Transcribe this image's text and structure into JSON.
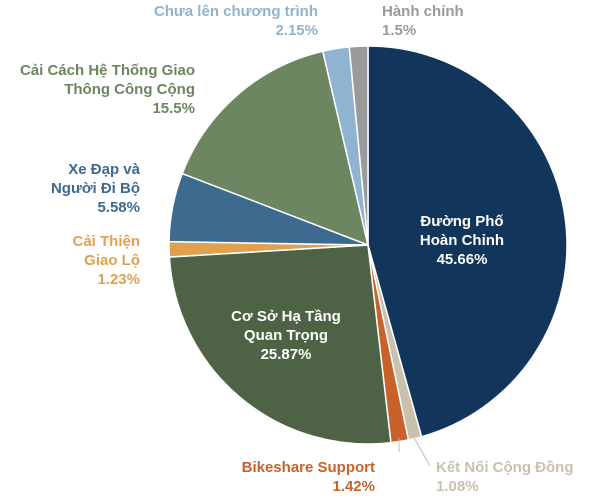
{
  "chart_data": {
    "type": "pie",
    "categories": [
      "Đường Phố Hoàn Chỉnh",
      "Kết Nối Cộng Đồng",
      "Bikeshare Support",
      "Cơ Sở Hạ Tầng Quan Trọng",
      "Cải Thiện Giao Lộ",
      "Xe Đạp và Người Đi Bộ",
      "Cải Cách Hệ Thống Giao Thông Công Cộng",
      "Chưa lên chương trình",
      "Hành chính"
    ],
    "values": [
      45.66,
      1.08,
      1.42,
      25.87,
      1.23,
      5.58,
      15.5,
      2.15,
      1.5
    ],
    "value_labels": [
      "45.66%",
      "1.08%",
      "1.42%",
      "25.87%",
      "1.23%",
      "5.58%",
      "15.5%",
      "2.15%",
      "1.5%"
    ],
    "colors": [
      "#12355b",
      "#c9c1ad",
      "#c8622a",
      "#4e6345",
      "#e0a050",
      "#3e6a90",
      "#6b8660",
      "#8fb3d0",
      "#9a9a9a"
    ]
  }
}
